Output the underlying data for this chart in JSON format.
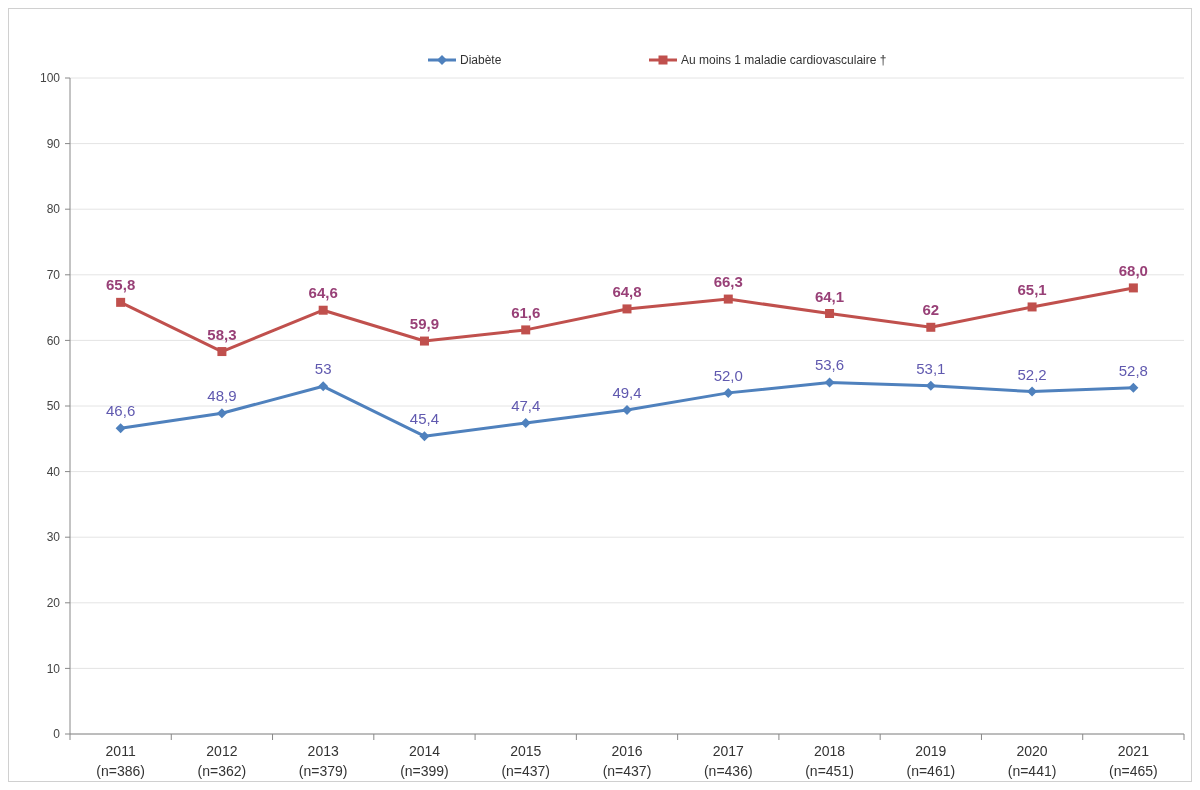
{
  "chart_data": {
    "type": "line",
    "categories": [
      "2011\n(n=386)",
      "2012\n(n=362)",
      "2013\n(n=379)",
      "2014\n(n=399)",
      "2015\n(n=437)",
      "2016\n(n=437)",
      "2017\n(n=436)",
      "2018\n(n=451)",
      "2019\n(n=461)",
      "2020\n(n=441)",
      "2021\n(n=465)"
    ],
    "series": [
      {
        "name": "Diabète",
        "color": "#4f81bd",
        "marker": "diamond",
        "values": [
          46.6,
          48.9,
          53,
          45.4,
          47.4,
          49.4,
          52.0,
          53.6,
          53.1,
          52.2,
          52.8
        ],
        "value_labels": [
          "46,6",
          "48,9",
          "53",
          "45,4",
          "47,4",
          "49,4",
          "52,0",
          "53,6",
          "53,1",
          "52,2",
          "52,8"
        ]
      },
      {
        "name": "Au moins 1 maladie cardiovasculaire †",
        "color": "#c0504d",
        "marker": "square",
        "values": [
          65.8,
          58.3,
          64.6,
          59.9,
          61.6,
          64.8,
          66.3,
          64.1,
          62,
          65.1,
          68.0
        ],
        "value_labels": [
          "65,8",
          "58,3",
          "64,6",
          "59,9",
          "61,6",
          "64,8",
          "66,3",
          "64,1",
          "62",
          "65,1",
          "68,0"
        ]
      }
    ],
    "ylim": [
      0,
      100
    ],
    "yticks": [
      0,
      10,
      20,
      30,
      40,
      50,
      60,
      70,
      80,
      90,
      100
    ],
    "grid": "y",
    "legend": "top",
    "line_style": "solid"
  }
}
